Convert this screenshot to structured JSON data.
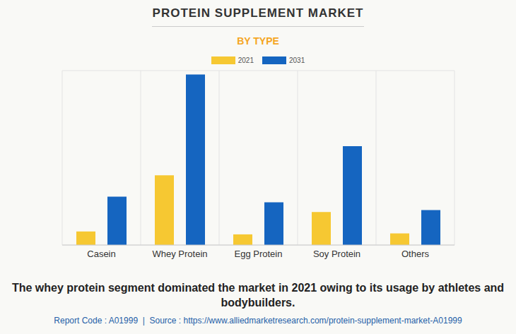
{
  "chart_data": {
    "type": "bar",
    "title": "PROTEIN SUPPLEMENT MARKET",
    "subtitle": "BY TYPE",
    "caption": "The whey protein segment dominated the market in 2021 owing to its usage by athletes and bodybuilders.",
    "source": "Report Code : A01999  |  Source : https://www.alliedmarketresearch.com/protein-supplement-market-A01999",
    "categories": [
      "Casein",
      "Whey Protein",
      "Egg Protein",
      "Soy Protein",
      "Others"
    ],
    "series": [
      {
        "name": "2021",
        "color": "#f6c832",
        "values": [
          0.7,
          3.6,
          0.55,
          1.7,
          0.6
        ]
      },
      {
        "name": "2031",
        "color": "#1565c0",
        "values": [
          2.5,
          8.8,
          2.2,
          5.1,
          1.8
        ]
      }
    ],
    "ylim": [
      0,
      9
    ],
    "yticks": [
      0,
      1,
      2,
      3,
      4,
      5,
      6,
      7,
      8,
      9
    ],
    "grid": true,
    "tick_labels": "x",
    "legend": "top"
  }
}
